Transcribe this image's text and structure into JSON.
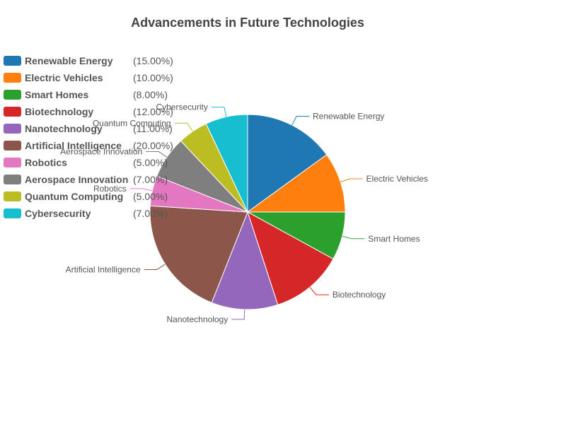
{
  "chart_data": {
    "type": "pie",
    "title": "Advancements in Future Technologies",
    "legend_position": "left",
    "slices": [
      {
        "name": "Renewable Energy",
        "value": 15,
        "label": "(15.00%)",
        "color": "#1f77b4"
      },
      {
        "name": "Electric Vehicles",
        "value": 10,
        "label": "(10.00%)",
        "color": "#ff7f0e"
      },
      {
        "name": "Smart Homes",
        "value": 8,
        "label": "(8.00%)",
        "color": "#2ca02c"
      },
      {
        "name": "Biotechnology",
        "value": 12,
        "label": "(12.00%)",
        "color": "#d62728"
      },
      {
        "name": "Nanotechnology",
        "value": 11,
        "label": "(11.00%)",
        "color": "#9467bd"
      },
      {
        "name": "Artificial Intelligence",
        "value": 20,
        "label": "(20.00%)",
        "color": "#8c564b"
      },
      {
        "name": "Robotics",
        "value": 5,
        "label": "(5.00%)",
        "color": "#e377c2"
      },
      {
        "name": "Aerospace Innovation",
        "value": 7,
        "label": "(7.00%)",
        "color": "#7f7f7f"
      },
      {
        "name": "Quantum Computing",
        "value": 5,
        "label": "(5.00%)",
        "color": "#bcbd22"
      },
      {
        "name": "Cybersecurity",
        "value": 7,
        "label": "(7.00%)",
        "color": "#17becf"
      }
    ]
  }
}
